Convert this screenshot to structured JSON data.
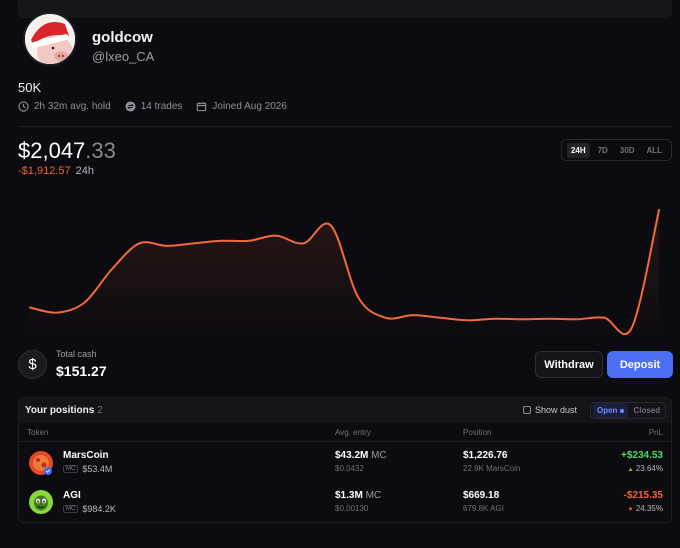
{
  "profile": {
    "username": "goldcow",
    "handle": "@lxeo_CA",
    "bio": "50K",
    "stats": {
      "avg_hold": "2h 32m avg. hold",
      "trades": "14 trades",
      "joined": "Joined Aug 2026"
    }
  },
  "portfolio": {
    "balance_main": "$2,047",
    "balance_decimal": ".33",
    "change_value": "-$1,912.57",
    "change_period": "24h",
    "timeframes": [
      "24H",
      "7D",
      "30D",
      "ALL"
    ],
    "active_timeframe": "24H"
  },
  "chart_data": {
    "type": "line",
    "color": "#f26a3c",
    "values": [
      2140,
      2130,
      2150,
      2215,
      2265,
      2260,
      2265,
      2270,
      2270,
      2280,
      2265,
      2300,
      2160,
      2120,
      2125,
      2120,
      2115,
      2118,
      2117,
      2118,
      2117,
      2120,
      2100,
      2330
    ]
  },
  "cash": {
    "label": "Total cash",
    "value": "$151.27",
    "icon": "dollar-icon"
  },
  "actions": {
    "withdraw": "Withdraw",
    "deposit": "Deposit"
  },
  "positions": {
    "title": "Your positions",
    "count": "2",
    "show_dust": "Show dust",
    "filter_open": "Open",
    "filter_closed": "Closed",
    "columns": {
      "token": "Token",
      "avg_entry": "Avg. entry",
      "position": "Position",
      "pnl": "PnL"
    },
    "rows": [
      {
        "name": "MarsCoin",
        "mc_tag": "MC",
        "mc": "$53.4M",
        "entry_mc": "$43.2M",
        "entry_unit": "MC",
        "entry_price": "$0.0432",
        "position_value": "$1,226.76",
        "position_amount": "22.9K MarsCoin",
        "pnl": "+$234.53",
        "pnl_pct": "23.64%",
        "direction": "up",
        "icon_color": "#e2492b"
      },
      {
        "name": "AGI",
        "mc_tag": "MC",
        "mc": "$984.2K",
        "entry_mc": "$1.3M",
        "entry_unit": "MC",
        "entry_price": "$0.00130",
        "position_value": "$669.18",
        "position_amount": "679.8K AGI",
        "pnl": "-$215.35",
        "pnl_pct": "24.35%",
        "direction": "down",
        "icon_color": "#8bd63a"
      }
    ]
  }
}
